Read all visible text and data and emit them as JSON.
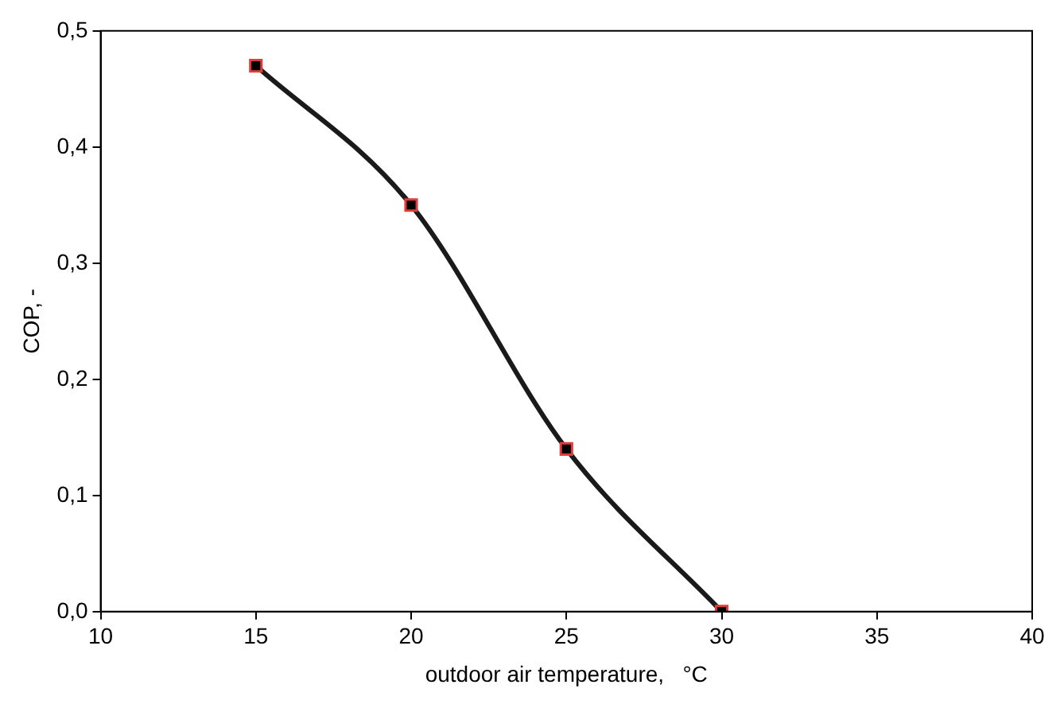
{
  "chart_data": {
    "type": "line",
    "xlabel": "outdoor air temperature,   °C",
    "ylabel": "COP, -",
    "x": [
      15,
      20,
      25,
      30
    ],
    "series": [
      {
        "color": "#1a1a1a",
        "values": [
          0.47,
          0.35,
          0.14,
          0.0
        ]
      }
    ],
    "xlim": [
      10,
      40
    ],
    "xticks": [
      10,
      15,
      20,
      25,
      30,
      35,
      40
    ],
    "ylim": [
      0,
      0.5
    ],
    "yticks": [
      {
        "value": 0,
        "label": "0,0"
      },
      {
        "value": 0.1,
        "label": "0,1"
      },
      {
        "value": 0.2,
        "label": "0,2"
      },
      {
        "value": 0.3,
        "label": "0,3"
      },
      {
        "value": 0.4,
        "label": "0,4"
      },
      {
        "value": 0.5,
        "label": "0,5"
      }
    ],
    "grid": false,
    "legend": false,
    "marker": "square",
    "line_style": "solid"
  }
}
